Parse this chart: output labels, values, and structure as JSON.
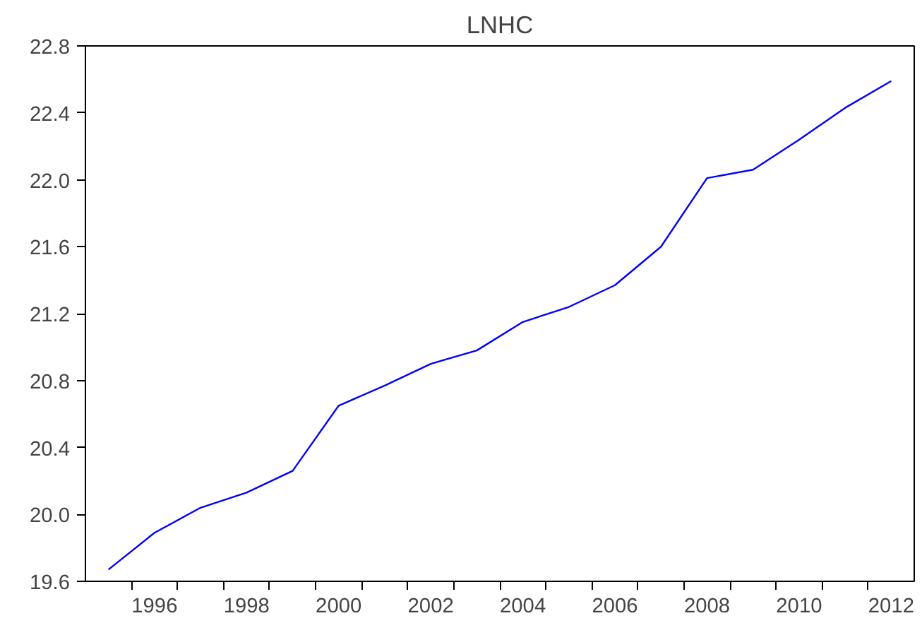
{
  "chart_data": {
    "type": "line",
    "title": "LNHC",
    "x": [
      1995.5,
      1996.5,
      1997.5,
      1998.5,
      1999.5,
      2000.5,
      2001.5,
      2002.5,
      2003.5,
      2004.5,
      2005.5,
      2006.5,
      2007.5,
      2008.5,
      2009.5,
      2010.5,
      2011.5,
      2012.5
    ],
    "series": [
      {
        "color": "#0000ff",
        "values": [
          19.67,
          19.89,
          20.04,
          20.13,
          20.26,
          20.65,
          20.77,
          20.9,
          20.98,
          21.15,
          21.24,
          21.37,
          21.6,
          22.01,
          22.06,
          22.24,
          22.43,
          22.59
        ]
      }
    ],
    "xlim": [
      1995,
      2013
    ],
    "xticks": [
      {
        "value": 1996,
        "label": null
      },
      {
        "value": 1996.5,
        "label": "1996"
      },
      {
        "value": 1997,
        "label": null
      },
      {
        "value": 1998,
        "label": null
      },
      {
        "value": 1998.5,
        "label": "1998"
      },
      {
        "value": 1999,
        "label": null
      },
      {
        "value": 2000,
        "label": null
      },
      {
        "value": 2000.5,
        "label": "2000"
      },
      {
        "value": 2001,
        "label": null
      },
      {
        "value": 2002,
        "label": null
      },
      {
        "value": 2002.5,
        "label": "2002"
      },
      {
        "value": 2003,
        "label": null
      },
      {
        "value": 2004,
        "label": null
      },
      {
        "value": 2004.5,
        "label": "2004"
      },
      {
        "value": 2005,
        "label": null
      },
      {
        "value": 2006,
        "label": null
      },
      {
        "value": 2006.5,
        "label": "2006"
      },
      {
        "value": 2007,
        "label": null
      },
      {
        "value": 2008,
        "label": null
      },
      {
        "value": 2008.5,
        "label": "2008"
      },
      {
        "value": 2009,
        "label": null
      },
      {
        "value": 2010,
        "label": null
      },
      {
        "value": 2010.5,
        "label": "2010"
      },
      {
        "value": 2011,
        "label": null
      },
      {
        "value": 2012,
        "label": null
      },
      {
        "value": 2012.5,
        "label": "2012"
      }
    ],
    "ylim": [
      19.6,
      22.8
    ],
    "yticks": [
      {
        "value": 19.6,
        "label": "19.6"
      },
      {
        "value": 20.0,
        "label": "20.0"
      },
      {
        "value": 20.4,
        "label": "20.4"
      },
      {
        "value": 20.8,
        "label": "20.8"
      },
      {
        "value": 21.2,
        "label": "21.2"
      },
      {
        "value": 21.6,
        "label": "21.6"
      },
      {
        "value": 22.0,
        "label": "22.0"
      },
      {
        "value": 22.4,
        "label": "22.4"
      },
      {
        "value": 22.8,
        "label": "22.8"
      }
    ],
    "line_style": "solid"
  }
}
